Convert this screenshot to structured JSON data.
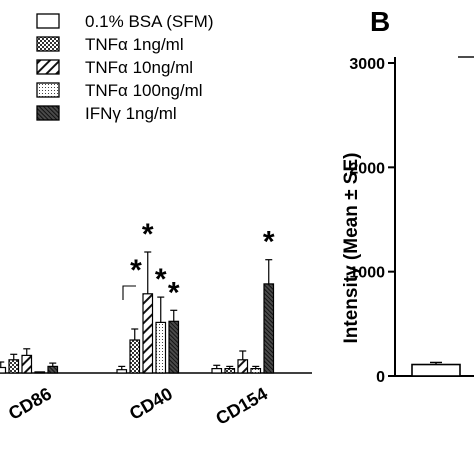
{
  "panel_b_label": "B",
  "chart_data": [
    {
      "type": "bar",
      "panel": "A",
      "categories": [
        "CD86",
        "CD40",
        "CD154"
      ],
      "series": [
        {
          "name": "0.1% BSA (SFM)",
          "values": [
            0.05,
            0.03,
            0.04
          ],
          "errors": [
            0.05,
            0.03,
            0.03
          ],
          "pattern": "open"
        },
        {
          "name": "TNFα 1ng/ml",
          "values": [
            0.12,
            0.3,
            0.04
          ],
          "errors": [
            0.05,
            0.1,
            0.02
          ],
          "pattern": "checker"
        },
        {
          "name": "TNFα 10ng/ml",
          "values": [
            0.16,
            0.72,
            0.12
          ],
          "errors": [
            0.06,
            0.38,
            0.08
          ],
          "pattern": "diagonal"
        },
        {
          "name": "TNFα 100ng/ml",
          "values": [
            0.01,
            0.46,
            0.04
          ],
          "errors": [
            0.0,
            0.23,
            0.02
          ],
          "pattern": "dots"
        },
        {
          "name": "IFNγ 1ng/ml",
          "values": [
            0.06,
            0.47,
            0.81
          ],
          "errors": [
            0.03,
            0.1,
            0.22
          ],
          "pattern": "dense-diagonal"
        }
      ],
      "significance": [
        {
          "category": "CD40",
          "series": "TNFα 1ng/ml",
          "mark": "*"
        },
        {
          "category": "CD40",
          "series": "TNFα 10ng/ml",
          "mark": "*"
        },
        {
          "category": "CD40",
          "series": "TNFα 100ng/ml",
          "mark": "*"
        },
        {
          "category": "CD40",
          "series": "IFNγ 1ng/ml",
          "mark": "*"
        },
        {
          "category": "CD154",
          "series": "IFNγ 1ng/ml",
          "mark": "*"
        }
      ],
      "legend_position": "top"
    },
    {
      "type": "bar",
      "panel": "B",
      "ylabel": "Intensity (Mean ± SE)",
      "yticks": [
        "0",
        "1000",
        "2000",
        "3000"
      ],
      "ylim": [
        0,
        3000
      ],
      "values": [
        110
      ],
      "errors": [
        20
      ]
    }
  ]
}
